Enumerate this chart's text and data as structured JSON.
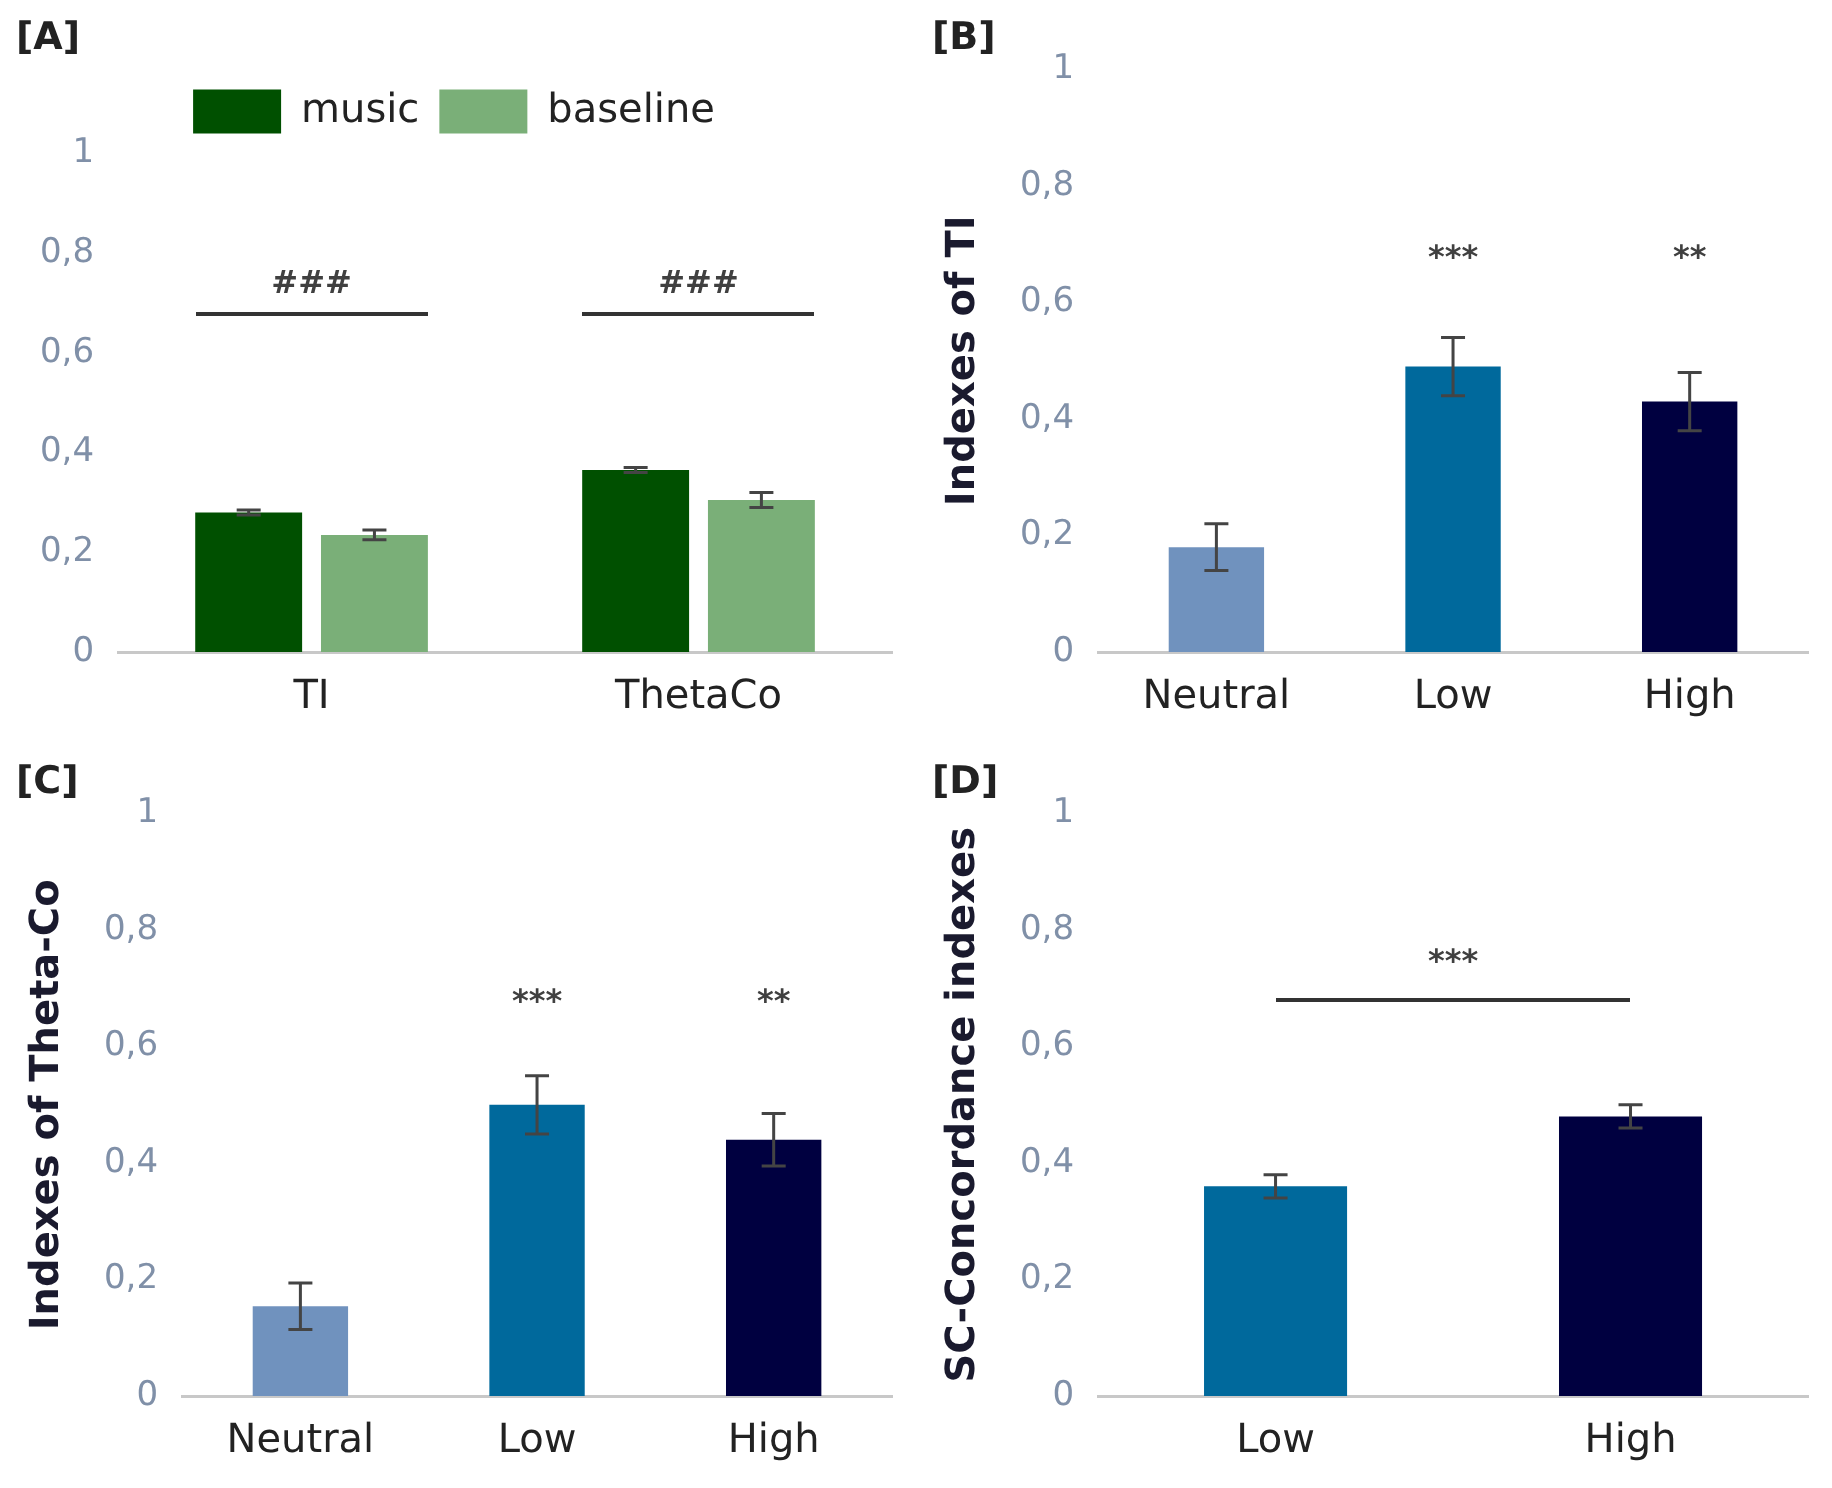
{
  "chart_data": [
    {
      "type": "bar",
      "title": "[A]",
      "categories": [
        "TI",
        "ThetaCo"
      ],
      "series": [
        {
          "name": "music",
          "color": "#005000",
          "values": [
            0.28,
            0.365
          ],
          "errors": [
            0.005,
            0.005
          ]
        },
        {
          "name": "baseline",
          "color": "#7aaf78",
          "values": [
            0.235,
            0.305
          ],
          "errors": [
            0.01,
            0.015
          ]
        }
      ],
      "ylim": [
        0,
        1
      ],
      "yticks": [
        {
          "value": 0,
          "label": "0"
        },
        {
          "value": 0.2,
          "label": "0,2"
        },
        {
          "value": 0.4,
          "label": "0,4"
        },
        {
          "value": 0.6,
          "label": "0,6"
        },
        {
          "value": 0.8,
          "label": "0,8"
        },
        {
          "value": 1,
          "label": "1"
        }
      ],
      "grid": false,
      "legend": "top",
      "annotations": [
        "###",
        "###"
      ]
    },
    {
      "type": "bar",
      "title": "[B]",
      "ylabel": "Indexes of TI",
      "categories": [
        "Neutral",
        "Low",
        "High"
      ],
      "values": [
        0.18,
        0.49,
        0.43
      ],
      "colors": [
        "#7092be",
        "#00699c",
        "#000040"
      ],
      "errors": [
        0.04,
        0.05,
        0.05
      ],
      "ylim": [
        0,
        1
      ],
      "yticks": [
        {
          "value": 0,
          "label": "0"
        },
        {
          "value": 0.2,
          "label": "0,2"
        },
        {
          "value": 0.4,
          "label": "0,4"
        },
        {
          "value": 0.6,
          "label": "0,6"
        },
        {
          "value": 0.8,
          "label": "0,8"
        },
        {
          "value": 1,
          "label": "1"
        }
      ],
      "grid": false,
      "annotations": [
        "***",
        "**"
      ]
    },
    {
      "type": "bar",
      "title": "[C]",
      "ylabel": "Indexes of Theta-Co",
      "categories": [
        "Neutral",
        "Low",
        "High"
      ],
      "values": [
        0.154,
        0.5,
        0.44
      ],
      "colors": [
        "#7092be",
        "#00699c",
        "#000040"
      ],
      "errors": [
        0.04,
        0.05,
        0.045
      ],
      "ylim": [
        0,
        1
      ],
      "yticks": [
        {
          "value": 0,
          "label": "0"
        },
        {
          "value": 0.2,
          "label": "0,2"
        },
        {
          "value": 0.4,
          "label": "0,4"
        },
        {
          "value": 0.6,
          "label": "0,6"
        },
        {
          "value": 0.8,
          "label": "0,8"
        },
        {
          "value": 1,
          "label": "1"
        }
      ],
      "grid": false,
      "annotations": [
        "***",
        "**"
      ]
    },
    {
      "type": "bar",
      "title": "[D]",
      "ylabel": "SC-Concordance indexes",
      "categories": [
        "Low",
        "High"
      ],
      "values": [
        0.36,
        0.48
      ],
      "colors": [
        "#00699c",
        "#000040"
      ],
      "errors": [
        0.02,
        0.02
      ],
      "ylim": [
        0,
        1
      ],
      "yticks": [
        {
          "value": 0,
          "label": "0"
        },
        {
          "value": 0.2,
          "label": "0,2"
        },
        {
          "value": 0.4,
          "label": "0,4"
        },
        {
          "value": 0.6,
          "label": "0,6"
        },
        {
          "value": 0.8,
          "label": "0,8"
        },
        {
          "value": 1,
          "label": "1"
        }
      ],
      "grid": false,
      "annotations": [
        "***"
      ]
    }
  ]
}
